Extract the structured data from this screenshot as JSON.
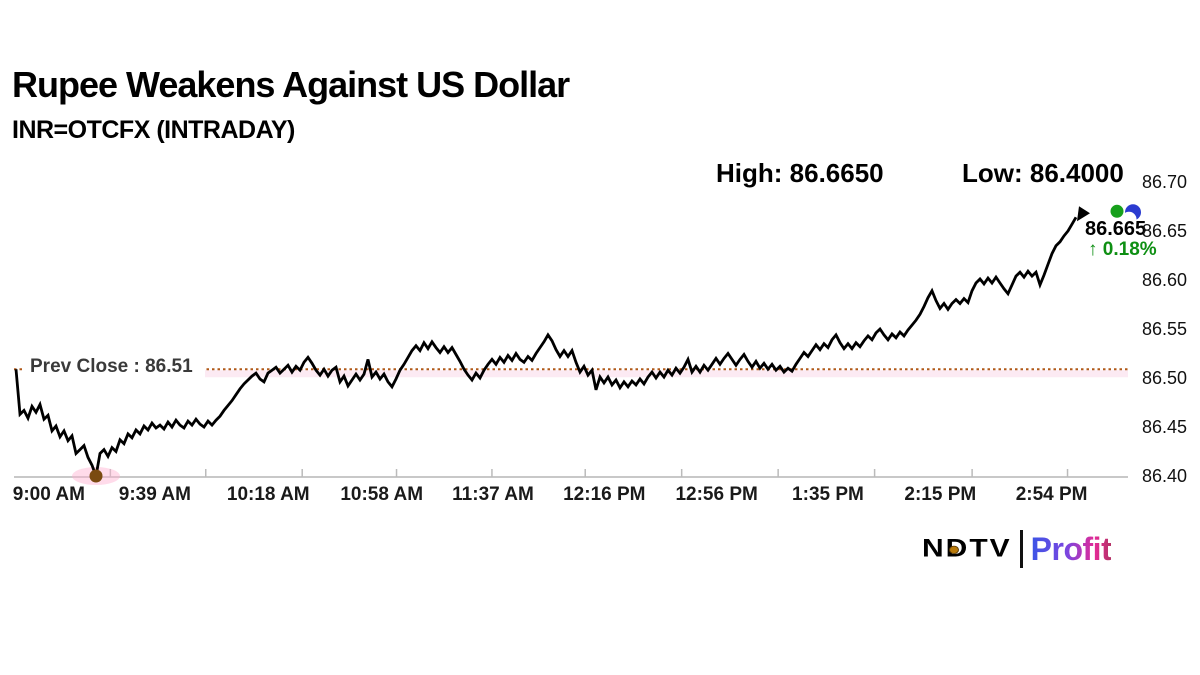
{
  "header": {
    "title": "Rupee Weakens Against US Dollar",
    "subtitle": "INR=OTCFX (INTRADAY)",
    "high_text": "High: 86.6650",
    "low_text": "Low: 86.4000"
  },
  "logo": {
    "brand": "NDTV",
    "product": "Profit"
  },
  "colors": {
    "price_line": "#000000",
    "prev_close_line": "#b05818",
    "prev_close_band": "#f9d9e9",
    "change_green": "#0e8f13",
    "low_dot": "#7a4a10",
    "low_glow": "#ffb0d0",
    "marker_green": "#17a01c",
    "marker_blue": "#2b3bd0",
    "axis": "#c8c8c8",
    "tick": "#bbbbbb"
  },
  "chart_data": {
    "type": "line",
    "title": "Rupee Weakens Against US Dollar",
    "subtitle": "INR=OTCFX (INTRADAY)",
    "series_name": "INR=OTCFX",
    "session": "9:00 AM to ~3:05 PM",
    "high": 86.665,
    "low": 86.4,
    "prev_close": 86.51,
    "prev_close_label": "Prev Close : 86.51",
    "last_price_text": "86.665",
    "change_text": "↑ 0.18%",
    "ylim": [
      86.4,
      86.7
    ],
    "grid": false,
    "legend": false,
    "y_ticks": [
      "86.70",
      "86.65",
      "86.60",
      "86.55",
      "86.50",
      "86.45",
      "86.40"
    ],
    "x_ticks": [
      "9:00 AM",
      "9:39 AM",
      "10:18 AM",
      "10:58 AM",
      "11:37 AM",
      "12:16 PM",
      "12:56 PM",
      "1:35 PM",
      "2:15 PM",
      "2:54 PM"
    ],
    "x_tick_pos_pct": [
      3.1,
      13.1,
      23.8,
      34.5,
      45.0,
      55.5,
      66.1,
      76.6,
      87.2,
      97.7
    ],
    "minor_tick_pos_pct": [
      8.9,
      17.9,
      27.0,
      35.9,
      44.9,
      53.7,
      62.8,
      71.9,
      81.0,
      90.2,
      99.2
    ],
    "prices_note": "uniform samples across session, left to right",
    "prices": [
      86.51,
      86.464,
      86.468,
      86.46,
      86.472,
      86.466,
      86.474,
      86.459,
      86.463,
      86.447,
      86.452,
      86.441,
      86.447,
      86.437,
      86.442,
      86.424,
      86.428,
      86.432,
      86.42,
      86.412,
      86.401,
      86.424,
      86.428,
      86.421,
      86.43,
      86.426,
      86.438,
      86.434,
      86.444,
      86.44,
      86.448,
      86.444,
      86.452,
      86.448,
      86.455,
      86.45,
      86.453,
      86.449,
      86.456,
      86.451,
      86.458,
      86.453,
      86.45,
      86.457,
      86.453,
      86.459,
      86.454,
      86.451,
      86.457,
      86.453,
      86.458,
      86.462,
      86.468,
      86.473,
      86.478,
      86.484,
      86.49,
      86.495,
      86.499,
      86.503,
      86.506,
      86.5,
      86.497,
      86.506,
      86.509,
      86.512,
      86.506,
      86.51,
      86.514,
      86.507,
      86.513,
      86.509,
      86.517,
      86.522,
      86.516,
      86.509,
      86.504,
      86.51,
      86.503,
      86.509,
      86.512,
      86.497,
      86.503,
      86.493,
      86.499,
      86.505,
      86.499,
      86.505,
      86.52,
      86.502,
      86.507,
      86.5,
      86.505,
      86.497,
      86.492,
      86.5,
      86.509,
      86.515,
      86.522,
      86.529,
      86.534,
      86.529,
      86.537,
      86.531,
      86.538,
      86.532,
      86.527,
      86.533,
      86.527,
      86.532,
      86.525,
      86.518,
      86.51,
      86.504,
      86.499,
      86.506,
      86.501,
      86.509,
      86.515,
      86.52,
      86.515,
      86.522,
      86.517,
      86.524,
      86.519,
      86.526,
      86.52,
      86.517,
      86.523,
      86.519,
      86.526,
      86.532,
      86.538,
      86.545,
      86.539,
      86.53,
      86.523,
      86.529,
      86.523,
      86.529,
      86.517,
      86.507,
      86.513,
      86.504,
      86.509,
      86.489,
      86.502,
      86.496,
      86.502,
      86.494,
      86.499,
      86.491,
      86.497,
      86.492,
      86.498,
      86.494,
      86.5,
      86.495,
      86.502,
      86.507,
      86.501,
      86.507,
      86.502,
      86.509,
      86.504,
      86.511,
      86.506,
      86.512,
      86.52,
      86.507,
      86.513,
      86.507,
      86.514,
      86.509,
      86.515,
      86.521,
      86.515,
      86.521,
      86.526,
      86.52,
      86.514,
      86.52,
      86.525,
      86.518,
      86.512,
      86.518,
      86.511,
      86.516,
      86.51,
      86.515,
      86.509,
      86.513,
      86.507,
      86.511,
      86.508,
      86.515,
      86.521,
      86.527,
      86.523,
      86.529,
      86.535,
      86.53,
      86.536,
      86.532,
      86.54,
      86.545,
      86.537,
      86.531,
      86.536,
      86.531,
      86.537,
      86.533,
      86.539,
      86.544,
      86.54,
      86.547,
      86.551,
      86.545,
      86.54,
      86.546,
      86.542,
      86.548,
      86.544,
      86.55,
      86.555,
      86.56,
      86.566,
      86.574,
      86.583,
      86.59,
      86.58,
      86.572,
      86.577,
      86.571,
      86.577,
      86.581,
      86.577,
      86.582,
      86.578,
      86.59,
      86.598,
      86.602,
      86.597,
      86.603,
      86.598,
      86.604,
      86.598,
      86.592,
      86.587,
      86.596,
      86.605,
      86.609,
      86.604,
      86.61,
      86.605,
      86.609,
      86.596,
      86.606,
      86.617,
      86.628,
      86.636,
      86.64,
      86.646,
      86.651,
      86.658,
      86.665
    ]
  }
}
